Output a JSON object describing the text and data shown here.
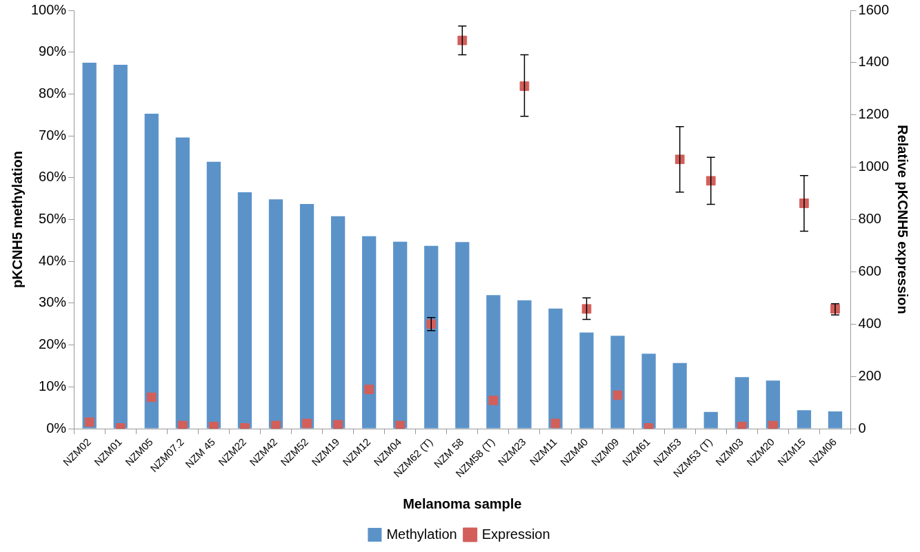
{
  "chart_data": {
    "type": "bar",
    "xlabel": "Melanoma sample",
    "ylabel": "pKCNH5 methylation",
    "y2label": "Relative pKCNH5 expression",
    "categories": [
      "NZM02",
      "NZM01",
      "NZM05",
      "NZM07.2",
      "NZM 45",
      "NZM22",
      "NZM42",
      "NZM52",
      "NZM19",
      "NZM12",
      "NZM04",
      "NZM62 (T)",
      "NZM 58",
      "NZM58 (T)",
      "NZM23",
      "NZM11",
      "NZM40",
      "NZM09",
      "NZM61",
      "NZM53",
      "NZM53 (T)",
      "NZM03",
      "NZM20",
      "NZM15",
      "NZM06"
    ],
    "series": [
      {
        "name": "Methylation",
        "color": "#5b93c9",
        "values": [
          87.5,
          87,
          75.3,
          69.6,
          63.8,
          56.5,
          54.8,
          53.7,
          50.8,
          46,
          44.7,
          43.7,
          44.6,
          31.9,
          30.7,
          28.7,
          23,
          22.2,
          17.9,
          15.7,
          4,
          12.3,
          11.5,
          4.4,
          4.1
        ]
      },
      {
        "name": "Expression",
        "type": "scatter",
        "axis": "y2",
        "marker": "square",
        "color": "#d25f5a",
        "values": [
          25,
          3,
          120,
          12,
          8,
          3,
          12,
          20,
          15,
          150,
          12,
          400,
          1485,
          108,
          1310,
          20,
          458,
          128,
          3,
          1030,
          948,
          8,
          12,
          862,
          458
        ],
        "errors": [
          null,
          null,
          null,
          null,
          null,
          null,
          null,
          null,
          null,
          null,
          null,
          [
            375,
            425
          ],
          [
            1430,
            1540
          ],
          null,
          [
            1195,
            1430
          ],
          null,
          [
            418,
            500
          ],
          null,
          null,
          [
            905,
            1155
          ],
          [
            858,
            1038
          ],
          null,
          null,
          [
            755,
            968
          ],
          [
            435,
            478
          ]
        ]
      }
    ],
    "ylim": [
      0,
      100
    ],
    "yticks": [
      {
        "value": 0,
        "label": "0%"
      },
      {
        "value": 10,
        "label": "10%"
      },
      {
        "value": 20,
        "label": "20%"
      },
      {
        "value": 30,
        "label": "30%"
      },
      {
        "value": 40,
        "label": "40%"
      },
      {
        "value": 50,
        "label": "50%"
      },
      {
        "value": 60,
        "label": "60%"
      },
      {
        "value": 70,
        "label": "70%"
      },
      {
        "value": 80,
        "label": "80%"
      },
      {
        "value": 90,
        "label": "90%"
      },
      {
        "value": 100,
        "label": "100%"
      }
    ],
    "y2lim": [
      0,
      1600
    ],
    "y2ticks": [
      0,
      200,
      400,
      600,
      800,
      1000,
      1200,
      1400,
      1600
    ],
    "grid": false,
    "legend": "bottom"
  }
}
